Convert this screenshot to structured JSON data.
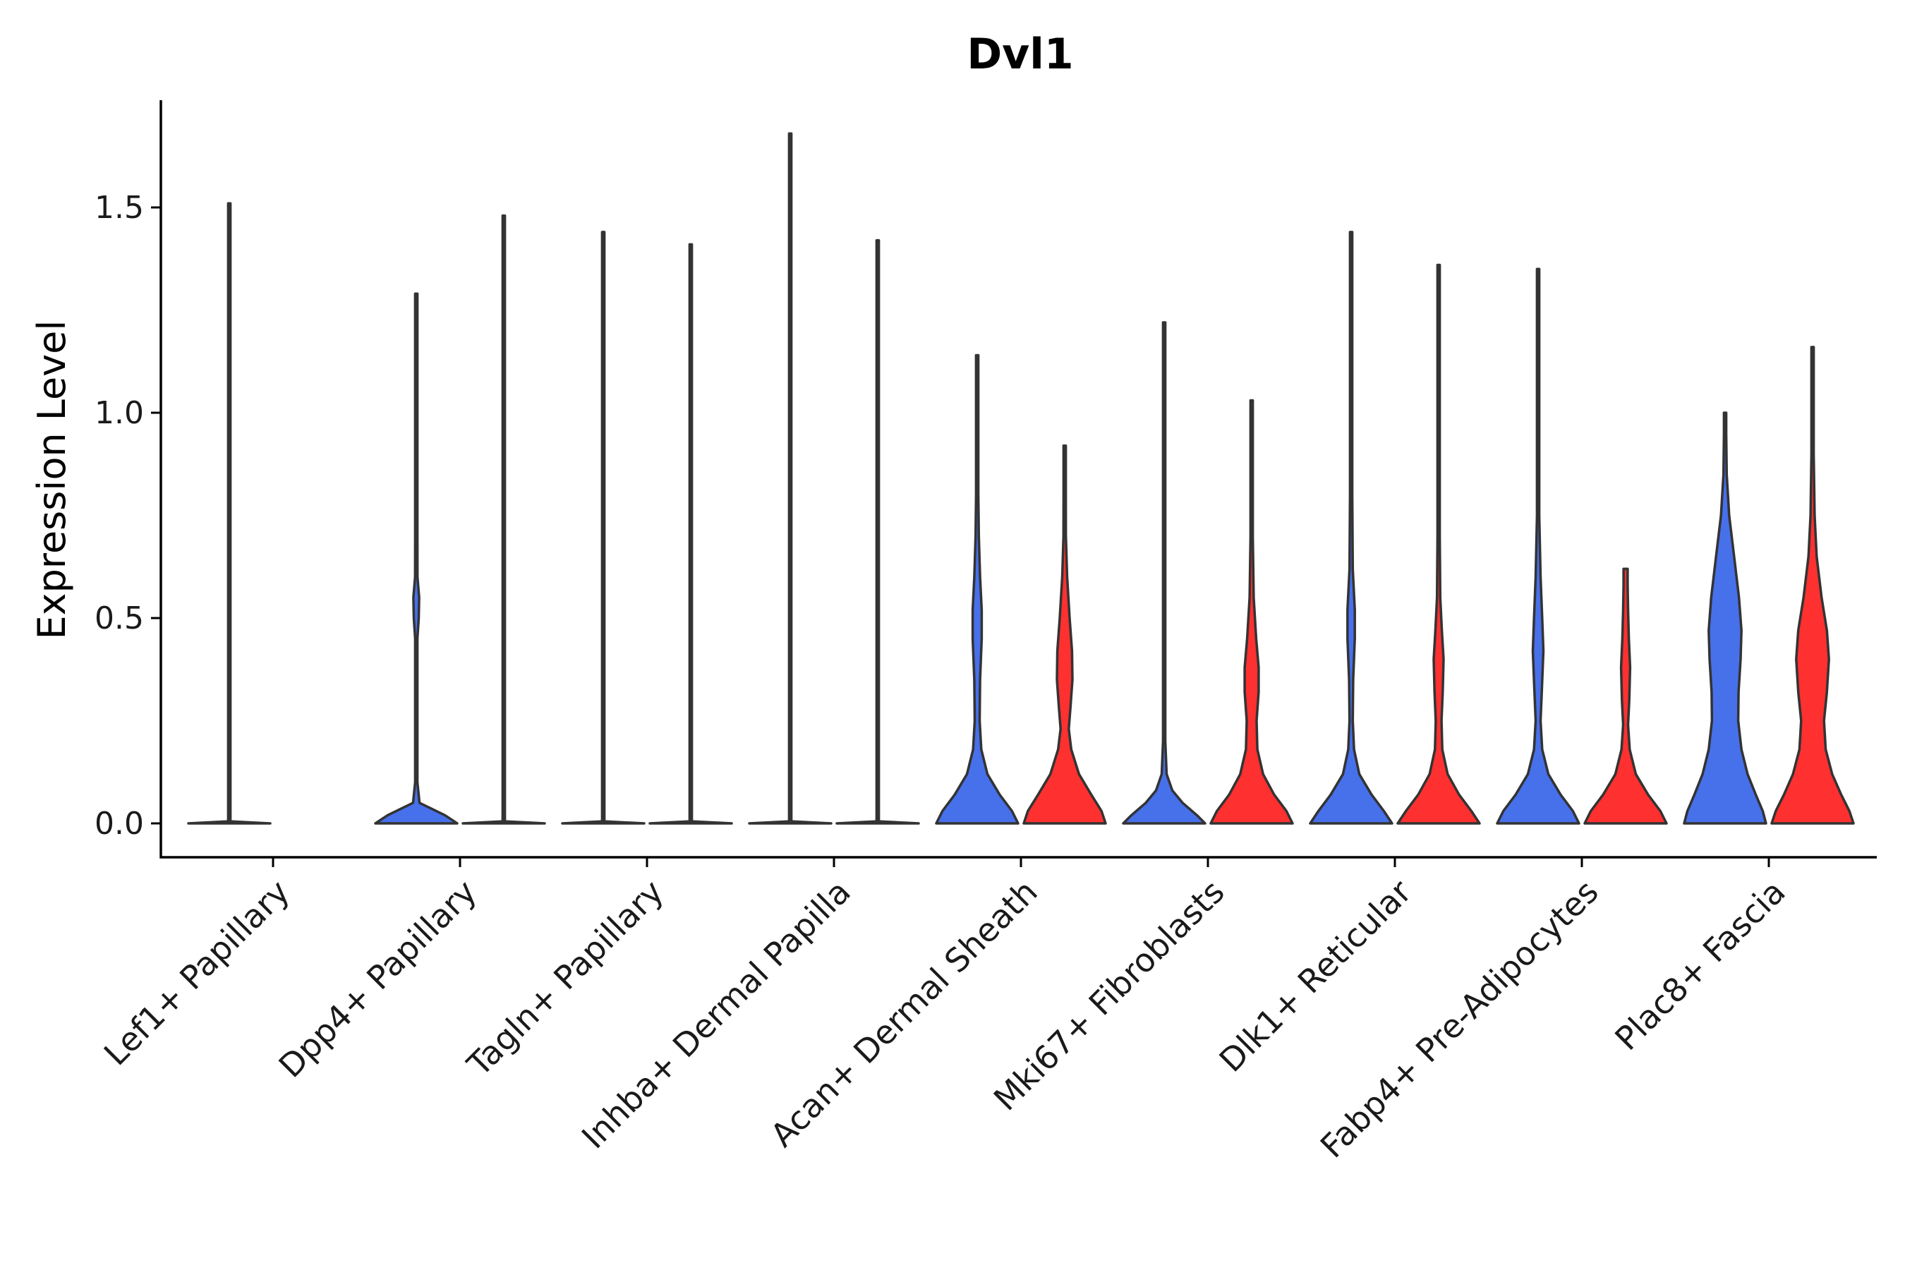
{
  "chart_data": {
    "type": "violin",
    "title": "Dvl1",
    "xlabel": "",
    "ylabel": "Expression Level",
    "ylim": [
      -0.08,
      1.76
    ],
    "yticks": [
      "0.0",
      "0.5",
      "1.0",
      "1.5"
    ],
    "ytick_values": [
      0.0,
      0.5,
      1.0,
      1.5
    ],
    "colors": {
      "group1": "#4770EB",
      "group2": "#FF3030",
      "outline": "#333333"
    },
    "categories": [
      "Lef1+ Papillary",
      "Dpp4+ Papillary",
      "Tagln+ Papillary",
      "Inhba+ Dermal Papilla",
      "Acan+ Dermal Sheath",
      "Mki67+ Fibroblasts",
      "Dlk1+ Reticular",
      "Fabp4+ Pre-Adipocytes",
      "Plac8+ Fascia"
    ],
    "series": [
      {
        "name": "group1",
        "color": "#4770EB",
        "violins": [
          {
            "max": 1.51,
            "profile": [
              [
                0,
                1.0
              ],
              [
                0.005,
                0.0
              ],
              [
                1.51,
                0.0
              ]
            ]
          },
          {
            "max": 1.29,
            "profile": [
              [
                0,
                1.0
              ],
              [
                0.02,
                0.7
              ],
              [
                0.05,
                0.08
              ],
              [
                0.1,
                0.02
              ],
              [
                0.45,
                0.02
              ],
              [
                0.5,
                0.06
              ],
              [
                0.55,
                0.07
              ],
              [
                0.6,
                0.03
              ],
              [
                0.7,
                0.01
              ],
              [
                1.29,
                0.0
              ]
            ]
          },
          {
            "max": 1.44,
            "profile": [
              [
                0,
                1.0
              ],
              [
                0.005,
                0.0
              ],
              [
                1.44,
                0.0
              ]
            ]
          },
          {
            "max": 1.68,
            "profile": [
              [
                0,
                1.0
              ],
              [
                0.005,
                0.0
              ],
              [
                1.68,
                0.0
              ]
            ]
          },
          {
            "max": 1.14,
            "profile": [
              [
                0,
                1.0
              ],
              [
                0.03,
                0.85
              ],
              [
                0.07,
                0.55
              ],
              [
                0.12,
                0.25
              ],
              [
                0.18,
                0.1
              ],
              [
                0.25,
                0.06
              ],
              [
                0.35,
                0.07
              ],
              [
                0.45,
                0.11
              ],
              [
                0.52,
                0.11
              ],
              [
                0.6,
                0.07
              ],
              [
                0.7,
                0.04
              ],
              [
                0.8,
                0.025
              ],
              [
                0.95,
                0.01
              ],
              [
                1.14,
                0.0
              ]
            ]
          },
          {
            "max": 1.22,
            "profile": [
              [
                0,
                1.0
              ],
              [
                0.02,
                0.8
              ],
              [
                0.05,
                0.45
              ],
              [
                0.08,
                0.2
              ],
              [
                0.12,
                0.06
              ],
              [
                0.2,
                0.02
              ],
              [
                0.4,
                0.02
              ],
              [
                0.48,
                0.025
              ],
              [
                0.6,
                0.015
              ],
              [
                0.8,
                0.008
              ],
              [
                1.22,
                0.0
              ]
            ]
          },
          {
            "max": 1.44,
            "profile": [
              [
                0,
                1.0
              ],
              [
                0.03,
                0.8
              ],
              [
                0.07,
                0.5
              ],
              [
                0.12,
                0.2
              ],
              [
                0.18,
                0.07
              ],
              [
                0.25,
                0.04
              ],
              [
                0.35,
                0.05
              ],
              [
                0.45,
                0.09
              ],
              [
                0.52,
                0.09
              ],
              [
                0.62,
                0.04
              ],
              [
                0.8,
                0.015
              ],
              [
                1.44,
                0.0
              ]
            ]
          },
          {
            "max": 1.35,
            "profile": [
              [
                0,
                1.0
              ],
              [
                0.03,
                0.85
              ],
              [
                0.07,
                0.55
              ],
              [
                0.12,
                0.25
              ],
              [
                0.18,
                0.1
              ],
              [
                0.25,
                0.06
              ],
              [
                0.32,
                0.09
              ],
              [
                0.42,
                0.13
              ],
              [
                0.5,
                0.1
              ],
              [
                0.6,
                0.06
              ],
              [
                0.75,
                0.025
              ],
              [
                0.9,
                0.01
              ],
              [
                1.35,
                0.0
              ]
            ]
          },
          {
            "max": 1.0,
            "profile": [
              [
                0,
                1.0
              ],
              [
                0.03,
                0.92
              ],
              [
                0.07,
                0.75
              ],
              [
                0.12,
                0.55
              ],
              [
                0.18,
                0.4
              ],
              [
                0.25,
                0.32
              ],
              [
                0.32,
                0.33
              ],
              [
                0.4,
                0.38
              ],
              [
                0.47,
                0.4
              ],
              [
                0.55,
                0.34
              ],
              [
                0.65,
                0.22
              ],
              [
                0.75,
                0.1
              ],
              [
                0.85,
                0.04
              ],
              [
                0.95,
                0.015
              ],
              [
                1.0,
                0.0
              ]
            ]
          }
        ]
      },
      {
        "name": "group2",
        "color": "#FF3030",
        "violins": [
          {
            "max": 0.0,
            "profile": []
          },
          {
            "max": 1.48,
            "profile": [
              [
                0,
                1.0
              ],
              [
                0.005,
                0.0
              ],
              [
                1.48,
                0.0
              ]
            ]
          },
          {
            "max": 1.41,
            "profile": [
              [
                0,
                1.0
              ],
              [
                0.005,
                0.0
              ],
              [
                1.41,
                0.0
              ]
            ]
          },
          {
            "max": 1.42,
            "profile": [
              [
                0,
                1.0
              ],
              [
                0.005,
                0.0
              ],
              [
                1.42,
                0.0
              ]
            ]
          },
          {
            "max": 0.92,
            "profile": [
              [
                0,
                1.0
              ],
              [
                0.03,
                0.9
              ],
              [
                0.07,
                0.65
              ],
              [
                0.12,
                0.35
              ],
              [
                0.18,
                0.16
              ],
              [
                0.23,
                0.1
              ],
              [
                0.28,
                0.14
              ],
              [
                0.35,
                0.19
              ],
              [
                0.42,
                0.18
              ],
              [
                0.5,
                0.12
              ],
              [
                0.6,
                0.06
              ],
              [
                0.7,
                0.03
              ],
              [
                0.8,
                0.012
              ],
              [
                0.92,
                0.0
              ]
            ]
          },
          {
            "max": 1.03,
            "profile": [
              [
                0,
                1.0
              ],
              [
                0.03,
                0.85
              ],
              [
                0.07,
                0.55
              ],
              [
                0.12,
                0.28
              ],
              [
                0.18,
                0.14
              ],
              [
                0.25,
                0.12
              ],
              [
                0.32,
                0.17
              ],
              [
                0.38,
                0.17
              ],
              [
                0.45,
                0.11
              ],
              [
                0.55,
                0.05
              ],
              [
                0.7,
                0.02
              ],
              [
                0.85,
                0.008
              ],
              [
                1.03,
                0.0
              ]
            ]
          },
          {
            "max": 1.36,
            "profile": [
              [
                0,
                1.0
              ],
              [
                0.03,
                0.8
              ],
              [
                0.07,
                0.5
              ],
              [
                0.12,
                0.22
              ],
              [
                0.18,
                0.09
              ],
              [
                0.25,
                0.07
              ],
              [
                0.32,
                0.1
              ],
              [
                0.4,
                0.12
              ],
              [
                0.47,
                0.08
              ],
              [
                0.55,
                0.04
              ],
              [
                0.7,
                0.015
              ],
              [
                1.36,
                0.0
              ]
            ]
          },
          {
            "max": 0.62,
            "profile": [
              [
                0,
                1.0
              ],
              [
                0.03,
                0.85
              ],
              [
                0.07,
                0.55
              ],
              [
                0.12,
                0.25
              ],
              [
                0.18,
                0.1
              ],
              [
                0.24,
                0.06
              ],
              [
                0.3,
                0.09
              ],
              [
                0.38,
                0.11
              ],
              [
                0.45,
                0.08
              ],
              [
                0.52,
                0.06
              ],
              [
                0.58,
                0.05
              ],
              [
                0.62,
                0.05
              ]
            ]
          },
          {
            "max": 1.16,
            "profile": [
              [
                0,
                1.0
              ],
              [
                0.03,
                0.9
              ],
              [
                0.07,
                0.7
              ],
              [
                0.12,
                0.48
              ],
              [
                0.18,
                0.32
              ],
              [
                0.25,
                0.28
              ],
              [
                0.32,
                0.35
              ],
              [
                0.4,
                0.4
              ],
              [
                0.47,
                0.35
              ],
              [
                0.55,
                0.22
              ],
              [
                0.65,
                0.1
              ],
              [
                0.75,
                0.05
              ],
              [
                0.9,
                0.02
              ],
              [
                1.16,
                0.0
              ]
            ]
          }
        ]
      }
    ]
  }
}
